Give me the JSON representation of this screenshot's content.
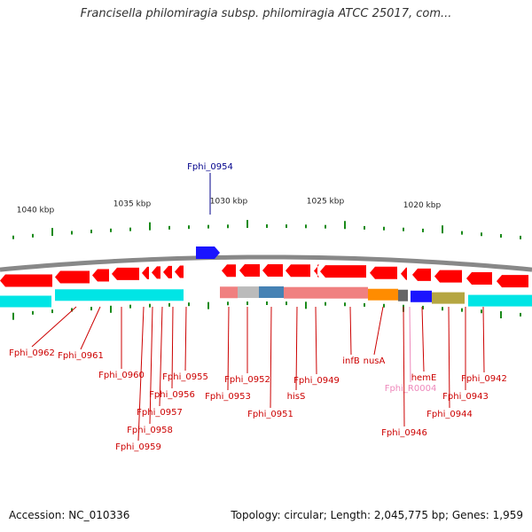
{
  "title": "Francisella philomiragia subsp. philomiragia ATCC 25017, com...",
  "footer": {
    "accession": "Accession: NC_010336",
    "topology": "Topology: circular; Length: 2,045,775 bp; Genes: 1,959"
  },
  "colors": {
    "gene_forward": "#1a14ff",
    "gene_reverse": "#ff0000",
    "cds": "#00e5e5",
    "label": "#cc0000",
    "label_forward": "#00008b",
    "label_rna": "#ee88bb",
    "backbone": "#888888",
    "tick": "#1a8a1a"
  },
  "scale_labels": [
    "1040 kbp",
    "1035 kbp",
    "1030 kbp",
    "1025 kbp",
    "1020 kbp"
  ],
  "gene_labels": [
    {
      "id": "Fphi_0954",
      "color": "forward"
    },
    {
      "id": "Fphi_0962",
      "color": "reverse"
    },
    {
      "id": "Fphi_0961",
      "color": "reverse"
    },
    {
      "id": "Fphi_0960",
      "color": "reverse"
    },
    {
      "id": "Fphi_0959",
      "color": "reverse"
    },
    {
      "id": "Fphi_0958",
      "color": "reverse"
    },
    {
      "id": "Fphi_0957",
      "color": "reverse"
    },
    {
      "id": "Fphi_0956",
      "color": "reverse"
    },
    {
      "id": "Fphi_0955",
      "color": "reverse"
    },
    {
      "id": "Fphi_0953",
      "color": "reverse"
    },
    {
      "id": "Fphi_0952",
      "color": "reverse"
    },
    {
      "id": "Fphi_0951",
      "color": "reverse"
    },
    {
      "id": "hisS",
      "color": "reverse"
    },
    {
      "id": "Fphi_0949",
      "color": "reverse"
    },
    {
      "id": "infB",
      "color": "reverse"
    },
    {
      "id": "nusA",
      "color": "reverse"
    },
    {
      "id": "Fphi_R0004",
      "color": "rna"
    },
    {
      "id": "Fphi_0946",
      "color": "reverse"
    },
    {
      "id": "hemE",
      "color": "reverse"
    },
    {
      "id": "Fphi_0944",
      "color": "reverse"
    },
    {
      "id": "Fphi_0943",
      "color": "reverse"
    },
    {
      "id": "Fphi_0942",
      "color": "reverse"
    }
  ]
}
